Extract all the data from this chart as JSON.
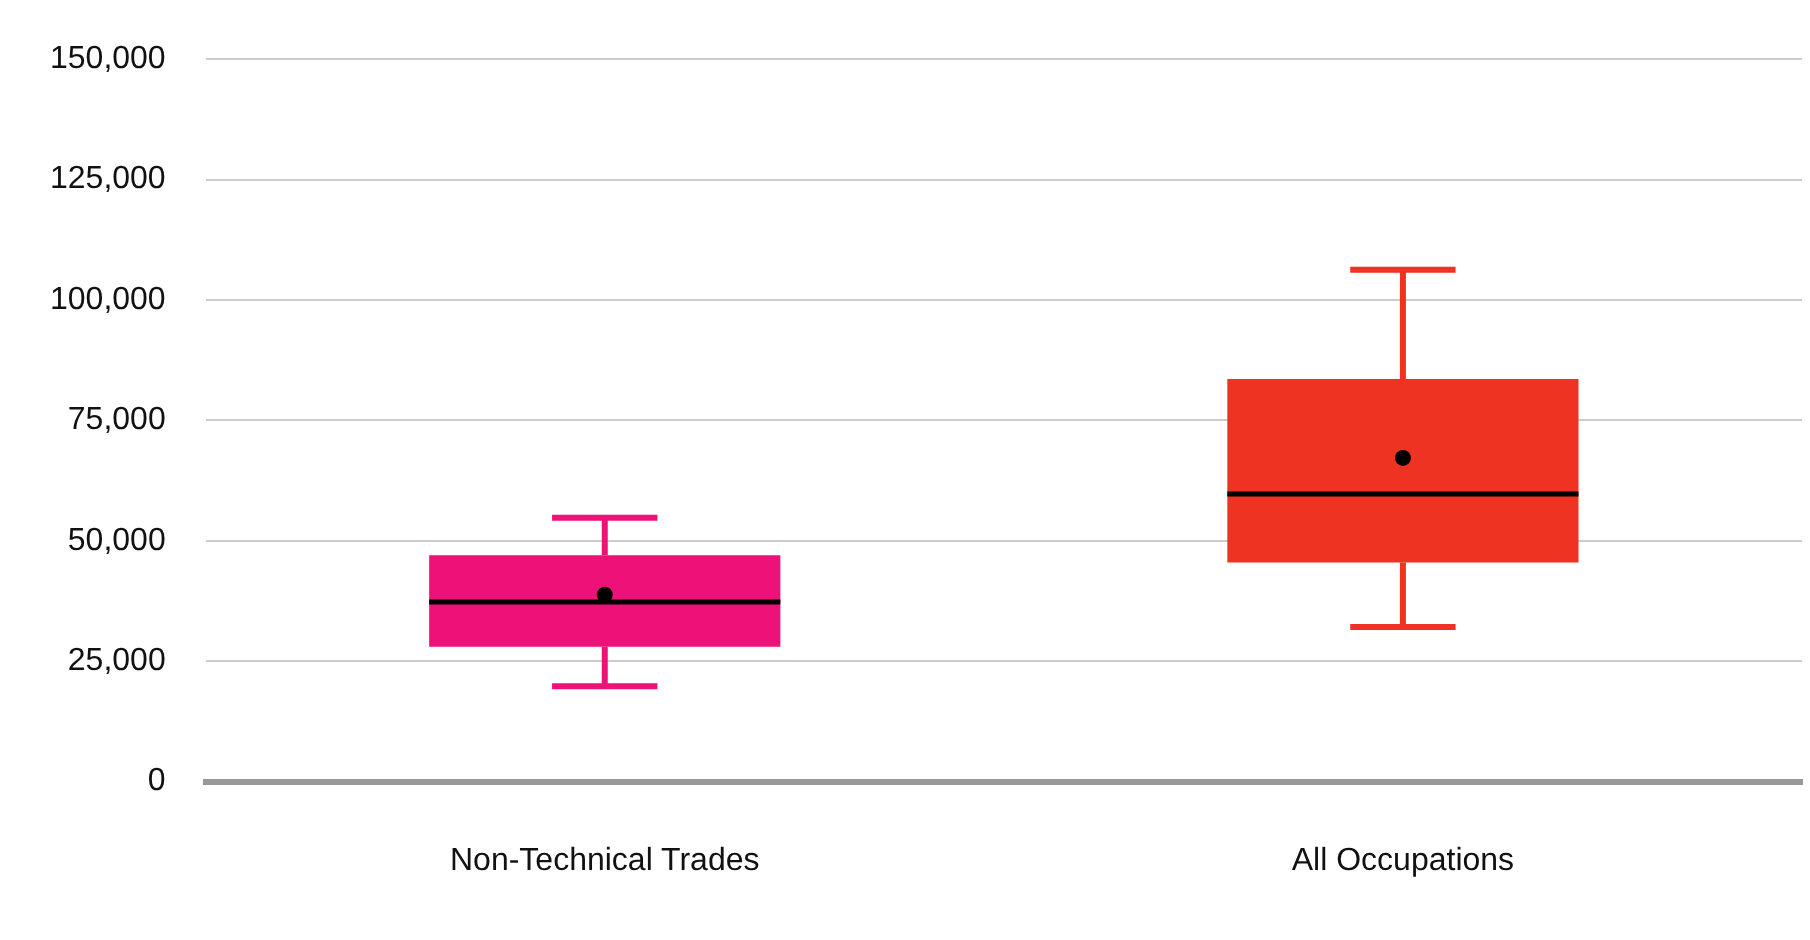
{
  "chart_data": {
    "type": "box",
    "categories": [
      "Non-Technical Trades",
      "All Occupations"
    ],
    "boxes": [
      {
        "low": 19800,
        "q1": 28000,
        "median": 37300,
        "q3": 47000,
        "high": 54800,
        "mean": 38800
      },
      {
        "low": 32100,
        "q1": 45500,
        "median": 59700,
        "q3": 83600,
        "high": 106300,
        "mean": 67200
      }
    ],
    "colors": [
      "#ee1177",
      "#ee3322"
    ],
    "ylim": [
      0,
      150000
    ],
    "yticks": [
      0,
      {
        "value": 25000,
        "label": "25,000"
      },
      {
        "value": 50000,
        "label": "50,000"
      },
      {
        "value": 75000,
        "label": "75,000"
      },
      {
        "value": 100000,
        "label": "100,000"
      },
      {
        "value": 125000,
        "label": "125,000"
      },
      {
        "value": 150000,
        "label": "150,000"
      }
    ],
    "grid": "y",
    "legend": false
  }
}
